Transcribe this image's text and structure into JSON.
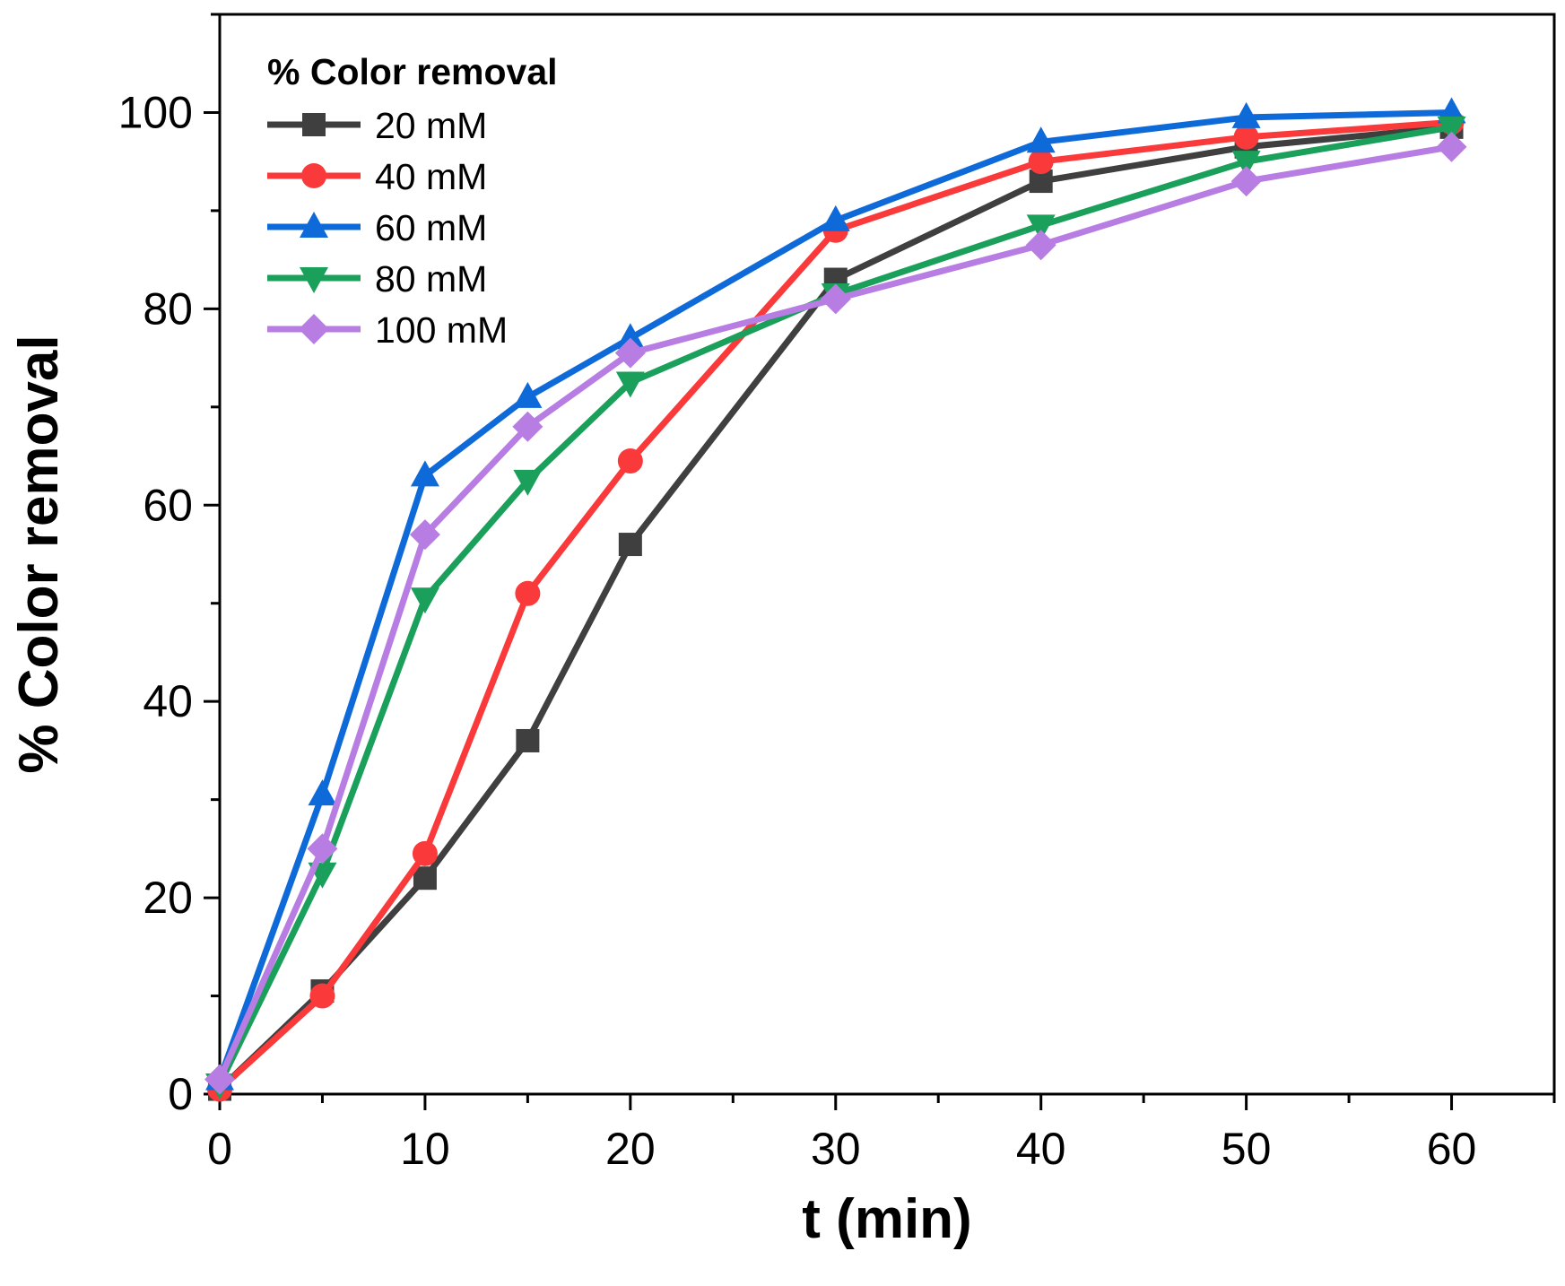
{
  "chart_data": {
    "type": "line",
    "title": "",
    "xlabel": "t (min)",
    "ylabel": "% Color removal",
    "xlim": [
      0,
      65
    ],
    "ylim": [
      0,
      110
    ],
    "xticks": [
      0,
      10,
      20,
      30,
      40,
      50,
      60
    ],
    "xtick_labels": [
      "0",
      "10",
      "20",
      "30",
      "40",
      "50",
      "60"
    ],
    "xminor": [
      5,
      15,
      25,
      35,
      45,
      55,
      65
    ],
    "yticks": [
      0,
      20,
      40,
      60,
      80,
      100
    ],
    "ytick_labels": [
      "0",
      "20",
      "40",
      "60",
      "80",
      "100"
    ],
    "yminor": [
      10,
      30,
      50,
      70,
      90,
      110
    ],
    "grid": false,
    "legend": {
      "title": "% Color removal",
      "position": "top-left"
    },
    "x": [
      0,
      5,
      10,
      15,
      20,
      30,
      40,
      50,
      60
    ],
    "series": [
      {
        "name": "20 mM",
        "color": "#3f3f3f",
        "marker": "square",
        "values": [
          0.5,
          10.5,
          22.0,
          36.0,
          56.0,
          83.0,
          93.0,
          96.5,
          98.5
        ]
      },
      {
        "name": "40 mM",
        "color": "#fa3a3a",
        "marker": "circle",
        "values": [
          0.5,
          10.0,
          24.5,
          51.0,
          64.5,
          88.0,
          95.0,
          97.5,
          99.0
        ]
      },
      {
        "name": "60 mM",
        "color": "#0f6ad9",
        "marker": "triangle-up",
        "values": [
          1.5,
          30.5,
          63.0,
          71.0,
          77.0,
          89.0,
          97.0,
          99.5,
          100.0
        ]
      },
      {
        "name": "80 mM",
        "color": "#1aa05a",
        "marker": "triangle-down",
        "values": [
          1.0,
          22.5,
          50.5,
          62.5,
          72.5,
          81.5,
          88.5,
          95.0,
          98.5
        ]
      },
      {
        "name": "100 mM",
        "color": "#b77de3",
        "marker": "diamond",
        "values": [
          1.5,
          25.0,
          57.0,
          68.0,
          75.5,
          81.0,
          86.5,
          93.0,
          96.5
        ]
      }
    ]
  }
}
